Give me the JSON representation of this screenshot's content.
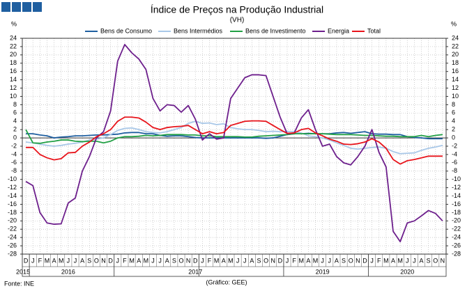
{
  "chart_data": {
    "type": "line",
    "title": "Índice de Preços na Produção Industrial",
    "subtitle": "(VH)",
    "y_unit": "%",
    "source": "Fonte: INE",
    "credit": "(Gráfico: GEE)",
    "categories": [
      "D",
      "J",
      "F",
      "M",
      "A",
      "M",
      "J",
      "J",
      "A",
      "S",
      "O",
      "N",
      "D",
      "J",
      "F",
      "M",
      "A",
      "M",
      "J",
      "J",
      "A",
      "S",
      "O",
      "N",
      "D",
      "J",
      "F",
      "M",
      "A",
      "M",
      "J",
      "J",
      "A",
      "S",
      "O",
      "N",
      "D",
      "J",
      "F",
      "M",
      "A",
      "M",
      "J",
      "J",
      "A",
      "S",
      "O",
      "N",
      "D",
      "J",
      "F",
      "M",
      "A",
      "M",
      "J",
      "J",
      "A",
      "S",
      "O",
      "N"
    ],
    "category_years": [
      "2015",
      null,
      null,
      null,
      null,
      null,
      "2016",
      null,
      null,
      null,
      null,
      null,
      null,
      null,
      null,
      null,
      null,
      null,
      null,
      null,
      null,
      null,
      null,
      null,
      "2017",
      null,
      null,
      null,
      null,
      null,
      null,
      null,
      null,
      null,
      null,
      null,
      null,
      null,
      null,
      null,
      null,
      null,
      "2019",
      null,
      null,
      null,
      null,
      null,
      null,
      null,
      null,
      null,
      null,
      null,
      "2020",
      null,
      null,
      null,
      null,
      null
    ],
    "ylim": [
      -28,
      24
    ],
    "yticks": [
      -28,
      -26,
      -24,
      -22,
      -20,
      -18,
      -16,
      -14,
      -12,
      -10,
      -8,
      -6,
      -4,
      -2,
      0,
      2,
      4,
      6,
      8,
      10,
      12,
      14,
      16,
      18,
      20,
      22,
      24
    ],
    "grid": true,
    "legend": "top",
    "series": [
      {
        "name": "Bens de Consumo",
        "color": "#1f5fa0",
        "values": [
          1,
          1,
          0.7,
          0.5,
          0,
          0.2,
          0.3,
          0.5,
          0.5,
          0.6,
          0.7,
          0.7,
          0.8,
          0.9,
          1.2,
          1.3,
          1.3,
          1,
          1,
          0.6,
          0.4,
          0.5,
          0.5,
          0.3,
          0.1,
          0,
          0,
          0,
          0,
          0,
          0,
          0,
          0,
          0,
          -0.1,
          0,
          0.4,
          0.8,
          1,
          1,
          1.1,
          1,
          1,
          1,
          1.2,
          1.3,
          1.1,
          1.3,
          1.5,
          1,
          0.9,
          0.9,
          0.8,
          0.8,
          0.3,
          0.1,
          0,
          -0.2,
          -0.2,
          -0.2
        ]
      },
      {
        "name": "Bens Intermédios",
        "color": "#a9c8e8",
        "values": [
          -1,
          -1.2,
          -1.5,
          -1.8,
          -2,
          -1.8,
          -1.5,
          -1.3,
          -1,
          -0.5,
          -0.3,
          0,
          0.8,
          1.8,
          2.3,
          2.4,
          2,
          1.5,
          1.3,
          1.2,
          1.5,
          2,
          2.5,
          3.5,
          4,
          3.5,
          3.6,
          3.2,
          3.4,
          2.5,
          2.2,
          2,
          2,
          1.8,
          1.5,
          1.6,
          1.5,
          1.5,
          1.5,
          1.2,
          0.5,
          0.3,
          0,
          -0.5,
          -1.2,
          -1.8,
          -2.5,
          -2.7,
          -2.5,
          -2.3,
          -2.2,
          -2.5,
          -3.3,
          -3.8,
          -3.7,
          -3.6,
          -3,
          -2.5,
          -2.2,
          -1.8
        ]
      },
      {
        "name": "Bens de Investimento",
        "color": "#22a045",
        "values": [
          2,
          -1.2,
          -1.3,
          -1,
          -0.8,
          -0.5,
          -0.5,
          -0.8,
          -0.9,
          -0.8,
          -0.8,
          -1.2,
          -0.8,
          0,
          0.3,
          0.3,
          0.4,
          0.6,
          0.5,
          0.6,
          0.8,
          0.8,
          0.8,
          0.7,
          0.7,
          0.5,
          0.5,
          0.3,
          0.3,
          0.3,
          0.3,
          0.2,
          0.2,
          0.4,
          0.5,
          0.6,
          0.7,
          0.8,
          1,
          1,
          1,
          1,
          1,
          0.9,
          0.8,
          0.8,
          0.8,
          0.7,
          0.6,
          0.6,
          0.5,
          0.4,
          0.4,
          0.3,
          0.3,
          0.3,
          0.6,
          0.3,
          0.6,
          0.8
        ]
      },
      {
        "name": "Energia",
        "color": "#6d1f8c",
        "values": [
          -10.5,
          -11.5,
          -18,
          -20.5,
          -20.8,
          -20.7,
          -15.7,
          -14.5,
          -8,
          -4.5,
          0,
          1.5,
          6.5,
          18.5,
          22.5,
          20.5,
          19,
          16.5,
          9.5,
          6.5,
          8,
          7.8,
          6.2,
          7.8,
          4.5,
          -0.5,
          1,
          -0.3,
          0,
          9.5,
          12,
          14.5,
          15.2,
          15.2,
          15,
          10,
          5,
          1,
          1.2,
          4.8,
          6.8,
          2,
          -2,
          -1.5,
          -4.5,
          -6,
          -6.5,
          -4.5,
          -2,
          2,
          -3.5,
          -7,
          -22.5,
          -25,
          -20.5,
          -20,
          -18.8,
          -17.5,
          -18.2,
          -20
        ]
      },
      {
        "name": "Total",
        "color": "#e8141b",
        "values": [
          -2.3,
          -2.3,
          -4,
          -4.8,
          -5.3,
          -5,
          -3.6,
          -3.5,
          -2,
          -1,
          0.3,
          1,
          2,
          4,
          5,
          5,
          4.8,
          3.8,
          2.5,
          2,
          2.5,
          2.7,
          2.8,
          3,
          2,
          1,
          1.5,
          1,
          1.3,
          3,
          3.5,
          4,
          4.1,
          4.1,
          4,
          3,
          2,
          1.1,
          1.2,
          2,
          2.3,
          1.2,
          0.5,
          -0.3,
          -0.8,
          -1.5,
          -1.6,
          -1.4,
          -1,
          -0.2,
          -1,
          -2.5,
          -5.2,
          -6.3,
          -5.5,
          -5.2,
          -4.8,
          -4.4,
          -4.4,
          -4.4
        ]
      }
    ]
  }
}
